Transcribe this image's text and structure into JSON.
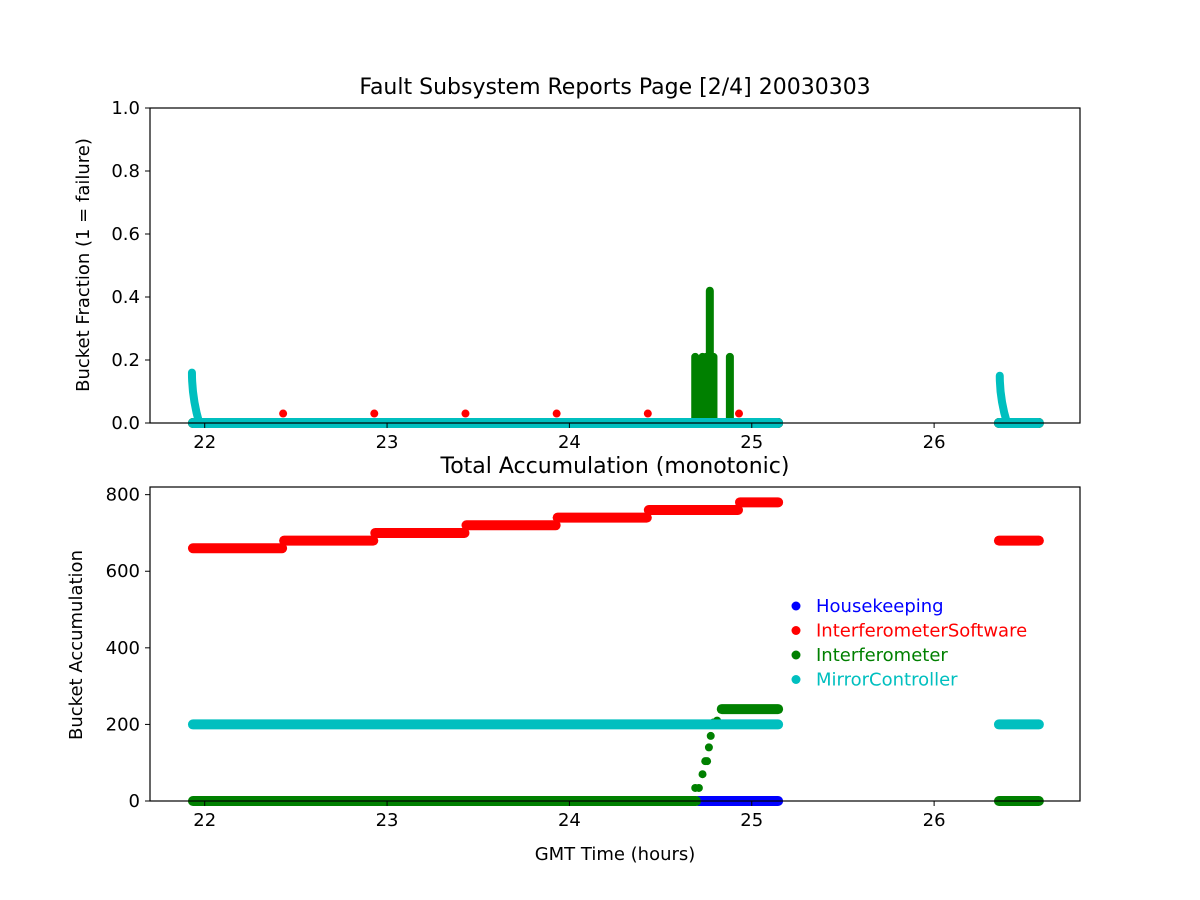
{
  "figure": {
    "title": "Fault Subsystem Reports Page [2/4] 20030303"
  },
  "colors": {
    "Housekeeping": "#0000ff",
    "InterferometerSoftware": "#ff0000",
    "Interferometer": "#008000",
    "MirrorController": "#00bfbf"
  },
  "chart_data": [
    {
      "type": "scatter",
      "title": "Fault Subsystem Reports Page [2/4] 20030303",
      "xlabel": "",
      "ylabel": "Bucket Fraction (1 = failure)",
      "xlim": [
        21.7,
        26.8
      ],
      "ylim": [
        0.0,
        1.0
      ],
      "xticks": [
        "22",
        "23",
        "24",
        "25",
        "26"
      ],
      "yticks": [
        "0.0",
        "0.2",
        "0.4",
        "0.6",
        "0.8",
        "1.0"
      ],
      "grid": false,
      "series": [
        {
          "name": "Housekeeping",
          "segments": [
            {
              "x": [
                24.7,
                25.15
              ],
              "y": 0.0
            }
          ]
        },
        {
          "name": "InterferometerSoftware",
          "segments": [
            {
              "x": [
                21.93,
                25.15
              ],
              "y": 0.0
            },
            {
              "x": [
                26.35,
                26.58
              ],
              "y": 0.0
            }
          ],
          "points": [
            {
              "x": 22.43,
              "y": 0.03
            },
            {
              "x": 22.93,
              "y": 0.03
            },
            {
              "x": 23.43,
              "y": 0.03
            },
            {
              "x": 23.93,
              "y": 0.03
            },
            {
              "x": 24.43,
              "y": 0.03
            },
            {
              "x": 24.93,
              "y": 0.03
            }
          ]
        },
        {
          "name": "Interferometer",
          "segments": [
            {
              "x": [
                21.93,
                25.15
              ],
              "y": 0.0
            },
            {
              "x": [
                26.35,
                26.58
              ],
              "y": 0.0
            }
          ],
          "stems": [
            {
              "x": 24.69,
              "y": 0.21
            },
            {
              "x": 24.71,
              "y": 0.18
            },
            {
              "x": 24.73,
              "y": 0.21
            },
            {
              "x": 24.75,
              "y": 0.21
            },
            {
              "x": 24.77,
              "y": 0.42
            },
            {
              "x": 24.79,
              "y": 0.21
            },
            {
              "x": 24.88,
              "y": 0.21
            }
          ]
        },
        {
          "name": "MirrorController",
          "segments": [
            {
              "x": [
                21.93,
                25.15
              ],
              "y": 0.0
            },
            {
              "x": [
                26.35,
                26.58
              ],
              "y": 0.0
            }
          ],
          "curves": [
            {
              "x": [
                21.93,
                21.97
              ],
              "y": [
                0.16,
                0.0
              ]
            },
            {
              "x": [
                26.36,
                26.4
              ],
              "y": [
                0.15,
                0.0
              ]
            }
          ]
        }
      ]
    },
    {
      "type": "scatter",
      "title": "Total Accumulation (monotonic)",
      "xlabel": "GMT Time (hours)",
      "ylabel": "Bucket Accumulation",
      "xlim": [
        21.7,
        26.8
      ],
      "ylim": [
        0,
        820
      ],
      "xticks": [
        "22",
        "23",
        "24",
        "25",
        "26"
      ],
      "yticks": [
        "0",
        "200",
        "400",
        "600",
        "800"
      ],
      "grid": false,
      "legend": "center-right",
      "series": [
        {
          "name": "Housekeeping",
          "segments": [
            {
              "x": [
                24.7,
                25.15
              ],
              "y": 0
            }
          ]
        },
        {
          "name": "InterferometerSoftware",
          "segments": [
            {
              "x": [
                21.93,
                22.43
              ],
              "y": 660
            },
            {
              "x": [
                22.43,
                22.93
              ],
              "y": 680
            },
            {
              "x": [
                22.93,
                23.43
              ],
              "y": 700
            },
            {
              "x": [
                23.43,
                23.93
              ],
              "y": 720
            },
            {
              "x": [
                23.93,
                24.43
              ],
              "y": 740
            },
            {
              "x": [
                24.43,
                24.93
              ],
              "y": 760
            },
            {
              "x": [
                24.93,
                25.15
              ],
              "y": 780
            },
            {
              "x": [
                26.35,
                26.58
              ],
              "y": 680
            }
          ]
        },
        {
          "name": "Interferometer",
          "segments": [
            {
              "x": [
                21.93,
                24.7
              ],
              "y": 0
            },
            {
              "x": [
                24.83,
                25.15
              ],
              "y": 240
            },
            {
              "x": [
                26.35,
                26.58
              ],
              "y": 0
            }
          ],
          "points": [
            {
              "x": 24.69,
              "y": 34
            },
            {
              "x": 24.71,
              "y": 34
            },
            {
              "x": 24.73,
              "y": 70
            },
            {
              "x": 24.745,
              "y": 104
            },
            {
              "x": 24.755,
              "y": 104
            },
            {
              "x": 24.765,
              "y": 140
            },
            {
              "x": 24.775,
              "y": 170
            },
            {
              "x": 24.79,
              "y": 205
            },
            {
              "x": 24.81,
              "y": 210
            }
          ]
        },
        {
          "name": "MirrorController",
          "segments": [
            {
              "x": [
                21.93,
                25.15
              ],
              "y": 200
            },
            {
              "x": [
                26.35,
                26.58
              ],
              "y": 200
            }
          ]
        }
      ]
    }
  ]
}
